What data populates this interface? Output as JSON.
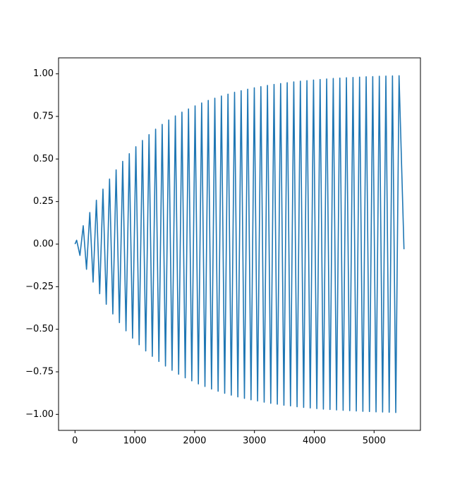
{
  "chart_data": {
    "type": "line",
    "x": [
      0,
      27.5,
      82.5,
      137.5,
      192.5,
      247.5,
      302.5,
      357.5,
      412.5,
      467.5,
      522.5,
      577.5,
      632.5,
      687.5,
      742.5,
      797.5,
      852.5,
      907.5,
      962.5,
      1017.5,
      1072.5,
      1127.5,
      1182.5,
      1237.5,
      1292.5,
      1347.5,
      1402.5,
      1457.5,
      1512.5,
      1567.5,
      1622.5,
      1677.5,
      1732.5,
      1787.5,
      1842.5,
      1897.5,
      1952.5,
      2007.5,
      2062.5,
      2117.5,
      2172.5,
      2227.5,
      2282.5,
      2337.5,
      2392.5,
      2447.5,
      2502.5,
      2557.5,
      2612.5,
      2667.5,
      2722.5,
      2777.5,
      2832.5,
      2887.5,
      2942.5,
      2997.5,
      3052.5,
      3107.5,
      3162.5,
      3217.5,
      3272.5,
      3327.5,
      3382.5,
      3437.5,
      3492.5,
      3547.5,
      3602.5,
      3657.5,
      3712.5,
      3767.5,
      3822.5,
      3877.5,
      3932.5,
      3987.5,
      4042.5,
      4097.5,
      4152.5,
      4207.5,
      4262.5,
      4317.5,
      4372.5,
      4427.5,
      4482.5,
      4537.5,
      4592.5,
      4647.5,
      4702.5,
      4757.5,
      4812.5,
      4867.5,
      4922.5,
      4977.5,
      5032.5,
      5087.5,
      5142.5,
      5197.5,
      5252.5,
      5307.5,
      5362.5,
      5417.5,
      5500
    ],
    "series": [
      {
        "color": "#1f77b4",
        "values": [
          0,
          0.023,
          -0.066,
          0.108,
          -0.148,
          0.186,
          -0.223,
          0.258,
          -0.291,
          0.323,
          -0.353,
          0.382,
          -0.41,
          0.436,
          -0.461,
          0.486,
          -0.509,
          0.531,
          -0.552,
          0.572,
          -0.591,
          0.609,
          -0.627,
          0.643,
          -0.659,
          0.675,
          -0.689,
          0.703,
          -0.716,
          0.729,
          -0.741,
          0.753,
          -0.764,
          0.775,
          -0.785,
          0.794,
          -0.803,
          0.812,
          -0.821,
          0.829,
          -0.836,
          0.844,
          -0.851,
          0.857,
          -0.864,
          0.87,
          -0.876,
          0.881,
          -0.887,
          0.892,
          -0.897,
          0.901,
          -0.906,
          0.91,
          -0.914,
          0.918,
          -0.921,
          0.925,
          -0.928,
          0.932,
          -0.935,
          0.938,
          -0.94,
          0.943,
          -0.946,
          0.948,
          -0.95,
          0.953,
          -0.955,
          0.957,
          -0.959,
          0.96,
          -0.962,
          0.964,
          -0.966,
          0.967,
          -0.969,
          0.97,
          -0.971,
          0.973,
          -0.974,
          0.975,
          -0.976,
          0.977,
          -0.978,
          0.979,
          -0.98,
          0.981,
          -0.982,
          0.983,
          -0.983,
          0.984,
          -0.985,
          0.986,
          -0.986,
          0.987,
          -0.987,
          0.988,
          -0.989,
          0.989,
          -0.03
        ]
      }
    ],
    "xlim": [
      -275,
      5775
    ],
    "ylim": [
      -1.094,
      1.094
    ],
    "xticks": [
      0,
      1000,
      2000,
      3000,
      4000,
      5000
    ],
    "yticks": [
      {
        "value": -1,
        "label": "−1.00"
      },
      {
        "value": -0.75,
        "label": "−0.75"
      },
      {
        "value": -0.5,
        "label": "−0.50"
      },
      {
        "value": -0.25,
        "label": "−0.25"
      },
      {
        "value": 0,
        "label": "0.00"
      },
      0.25,
      {
        "value": 0.5,
        "label": "0.50"
      },
      0.75,
      {
        "value": 1,
        "label": "1.00"
      }
    ]
  }
}
